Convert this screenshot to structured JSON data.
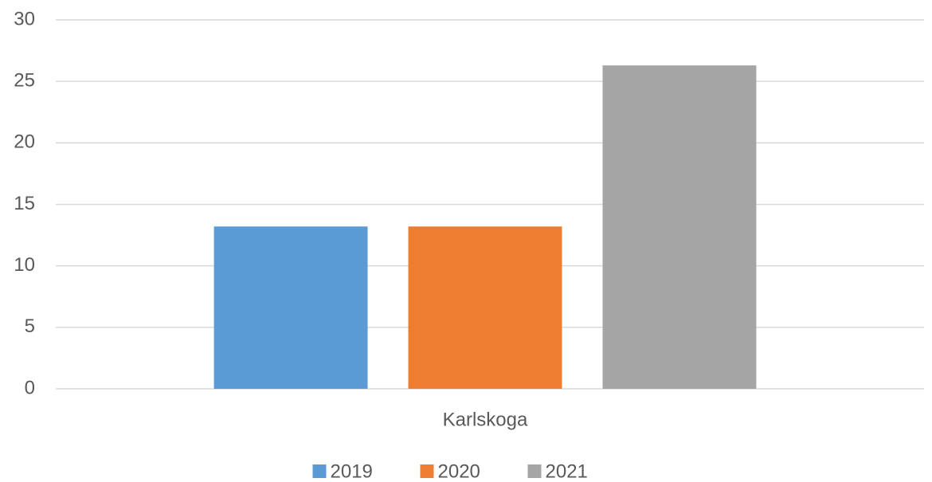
{
  "chart_data": {
    "type": "bar",
    "categories": [
      "Karlskoga"
    ],
    "series": [
      {
        "name": "2019",
        "color": "#5b9bd5",
        "values": [
          13.2
        ]
      },
      {
        "name": "2020",
        "color": "#ed7d31",
        "values": [
          13.2
        ]
      },
      {
        "name": "2021",
        "color": "#a5a5a5",
        "values": [
          26.3
        ]
      }
    ],
    "ylim": [
      0,
      30
    ],
    "yticks": [
      0,
      5,
      10,
      15,
      20,
      25,
      30
    ],
    "grid": true,
    "legend": "bottom"
  }
}
